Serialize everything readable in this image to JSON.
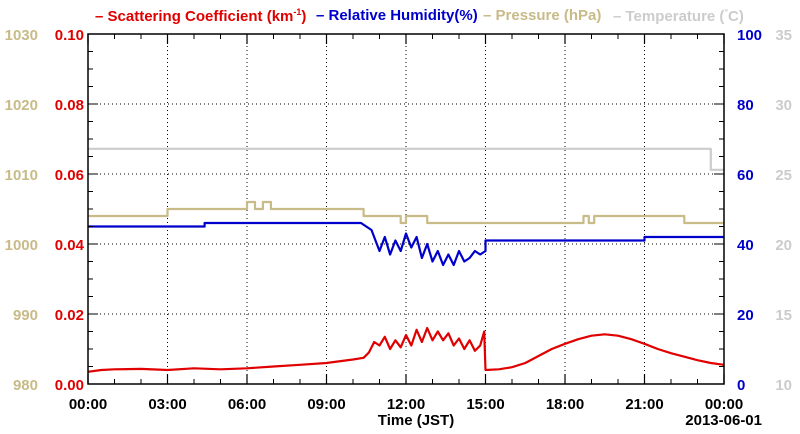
{
  "chart_data": {
    "type": "line",
    "title_segments": [
      {
        "text": "– Scattering Coefficient (km",
        "sup": "-1",
        "tail": ")",
        "color": "#e00000"
      },
      {
        "text": "– Relative Humidity(%)",
        "color": "#0000cc"
      },
      {
        "text": "– Pressure (hPa)",
        "color": "#c8bb88"
      },
      {
        "text": "– Temperature (",
        "sup": "°",
        "tail": "C)",
        "color": "#cccccc"
      }
    ],
    "xlabel": "Time (JST)",
    "date_label": "2013-06-01",
    "x_ticks": [
      "00:00",
      "03:00",
      "06:00",
      "09:00",
      "12:00",
      "15:00",
      "18:00",
      "21:00",
      "00:00"
    ],
    "xlim": [
      0,
      24
    ],
    "grid": true,
    "axes": {
      "scattering": {
        "ylim": [
          0,
          0.1
        ],
        "ticks": [
          "0.00",
          "0.02",
          "0.04",
          "0.06",
          "0.08",
          "0.10"
        ],
        "color": "#e00000"
      },
      "pressure": {
        "ylim": [
          980,
          1030
        ],
        "ticks": [
          "980",
          "990",
          "1000",
          "1010",
          "1020",
          "1030"
        ],
        "color": "#c8bb88"
      },
      "humidity": {
        "ylim": [
          0,
          100
        ],
        "ticks": [
          "0",
          "20",
          "40",
          "60",
          "80",
          "100"
        ],
        "color": "#0000cc"
      },
      "temperature": {
        "ylim": [
          10,
          35
        ],
        "ticks": [
          "10",
          "15",
          "20",
          "25",
          "30",
          "35"
        ],
        "color": "#cccccc"
      }
    },
    "series": [
      {
        "name": "Temperature (°C)",
        "axis": "temperature",
        "color": "#cccccc",
        "x": [
          0,
          23.5,
          23.5,
          24
        ],
        "y": [
          26.8,
          26.8,
          25.3,
          25.3
        ]
      },
      {
        "name": "Pressure (hPa)",
        "axis": "pressure",
        "color": "#c8bb88",
        "x": [
          0,
          3.0,
          3.0,
          6.0,
          6.0,
          6.3,
          6.3,
          6.6,
          6.6,
          6.9,
          6.9,
          7.2,
          7.2,
          10.4,
          10.4,
          11.8,
          11.8,
          12.0,
          12.0,
          12.8,
          12.8,
          18.7,
          18.7,
          18.9,
          18.9,
          19.1,
          19.1,
          22.5,
          22.5,
          24
        ],
        "y": [
          1004,
          1004,
          1005,
          1005,
          1006,
          1006,
          1005,
          1005,
          1006,
          1006,
          1005,
          1005,
          1005,
          1005,
          1004,
          1004,
          1003,
          1003,
          1004,
          1004,
          1003,
          1003,
          1004,
          1004,
          1003,
          1003,
          1004,
          1004,
          1003,
          1003
        ]
      },
      {
        "name": "Relative Humidity(%)",
        "axis": "humidity",
        "color": "#0000cc",
        "x": [
          0,
          4.4,
          4.4,
          10.3,
          10.7,
          11.0,
          11.2,
          11.4,
          11.6,
          11.8,
          12.0,
          12.2,
          12.4,
          12.6,
          12.8,
          13.0,
          13.2,
          13.4,
          13.6,
          13.8,
          14.0,
          14.2,
          14.4,
          14.6,
          14.8,
          15.0,
          15.0,
          21.0,
          21.0,
          24
        ],
        "y": [
          45,
          45,
          46,
          46,
          44,
          38,
          42,
          37,
          41,
          38,
          43,
          39,
          42,
          36,
          40,
          35,
          38,
          34,
          37,
          34,
          38,
          35,
          36,
          38,
          37,
          38,
          41,
          41,
          42,
          42
        ]
      },
      {
        "name": "Scattering Coefficient (km-1)",
        "axis": "scattering",
        "color": "#e00000",
        "x": [
          0,
          0.5,
          1.0,
          2.0,
          3.0,
          4.0,
          5.0,
          6.0,
          7.0,
          8.0,
          9.0,
          10.0,
          10.4,
          10.6,
          10.8,
          11.0,
          11.2,
          11.4,
          11.6,
          11.8,
          12.0,
          12.2,
          12.4,
          12.6,
          12.8,
          13.0,
          13.2,
          13.4,
          13.6,
          13.8,
          14.0,
          14.2,
          14.4,
          14.6,
          14.8,
          14.95,
          15.0,
          15.5,
          16.0,
          16.5,
          17.0,
          17.5,
          18.0,
          18.5,
          19.0,
          19.5,
          20.0,
          20.5,
          21.0,
          21.5,
          22.0,
          22.5,
          23.0,
          23.5,
          24
        ],
        "y": [
          0.0035,
          0.004,
          0.0042,
          0.0043,
          0.004,
          0.0045,
          0.0042,
          0.0045,
          0.005,
          0.0055,
          0.006,
          0.007,
          0.0075,
          0.009,
          0.012,
          0.011,
          0.0135,
          0.01,
          0.0125,
          0.0105,
          0.014,
          0.011,
          0.0155,
          0.012,
          0.016,
          0.0125,
          0.015,
          0.0125,
          0.0145,
          0.011,
          0.013,
          0.01,
          0.0125,
          0.0095,
          0.011,
          0.015,
          0.004,
          0.0042,
          0.0048,
          0.006,
          0.008,
          0.01,
          0.0115,
          0.0128,
          0.0138,
          0.0142,
          0.0138,
          0.0128,
          0.0115,
          0.01,
          0.0088,
          0.0078,
          0.0068,
          0.006,
          0.0055
        ]
      }
    ]
  }
}
